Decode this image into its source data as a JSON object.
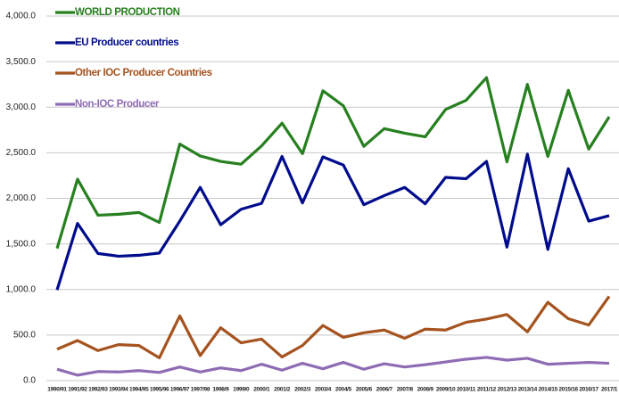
{
  "chart_data": {
    "type": "line",
    "categories": [
      "1990/91",
      "1991/92",
      "1992/93",
      "1993/94",
      "1994/95",
      "1995/96",
      "1996/97",
      "1997/98",
      "1998/9",
      "1999/0",
      "2000/1",
      "2001/2",
      "2002/3",
      "2003/4",
      "2004/5",
      "2005/6",
      "2006/7",
      "2007/8",
      "2008/9",
      "2009/10",
      "2010/11",
      "2011/12",
      "2012/13",
      "2013/14",
      "2014/15",
      "2015/16",
      "2016/17",
      "2017/1"
    ],
    "series": [
      {
        "name": "WORLD PRODUCTION",
        "color": "#27801f",
        "values": [
          1450,
          2210,
          1815,
          1825,
          1845,
          1735,
          2595,
          2465,
          2405,
          2375,
          2575,
          2825,
          2490,
          3180,
          3015,
          2570,
          2765,
          2715,
          2675,
          2975,
          3075,
          3325,
          2400,
          3250,
          2460,
          3185,
          2540,
          2895
        ]
      },
      {
        "name": "EU Producer countries",
        "color": "#000c8c",
        "values": [
          995,
          1725,
          1395,
          1365,
          1375,
          1400,
          1750,
          2120,
          1710,
          1880,
          1945,
          2460,
          1950,
          2455,
          2365,
          1930,
          2030,
          2120,
          1940,
          2230,
          2215,
          2405,
          1465,
          2485,
          1440,
          2325,
          1750,
          1810
        ]
      },
      {
        "name": "Other IOC Producer Countries",
        "color": "#a5531f",
        "values": [
          345,
          440,
          330,
          395,
          385,
          250,
          710,
          275,
          580,
          415,
          455,
          260,
          385,
          605,
          475,
          525,
          555,
          465,
          565,
          555,
          640,
          675,
          725,
          535,
          860,
          680,
          610,
          925
        ]
      },
      {
        "name": "Non-IOC Producer",
        "color": "#8e6cb3",
        "values": [
          125,
          60,
          100,
          95,
          110,
          90,
          150,
          95,
          140,
          110,
          180,
          115,
          190,
          130,
          200,
          125,
          185,
          150,
          175,
          205,
          235,
          255,
          225,
          245,
          180,
          190,
          200,
          190
        ]
      }
    ],
    "ylim": [
      0,
      4000
    ],
    "yticks": [
      {
        "value": 0,
        "label": "0.0"
      },
      {
        "value": 500,
        "label": "500.0"
      },
      {
        "value": 1000,
        "label": "1,000.0"
      },
      {
        "value": 1500,
        "label": "1,500.0"
      },
      {
        "value": 2000,
        "label": "2,000.0"
      },
      {
        "value": 2500,
        "label": "2,500.0"
      },
      {
        "value": 3000,
        "label": "3,000.0"
      },
      {
        "value": 3500,
        "label": "3,500.0"
      },
      {
        "value": 4000,
        "label": "4,000.0"
      }
    ],
    "grid": true,
    "legend": "top-left"
  }
}
